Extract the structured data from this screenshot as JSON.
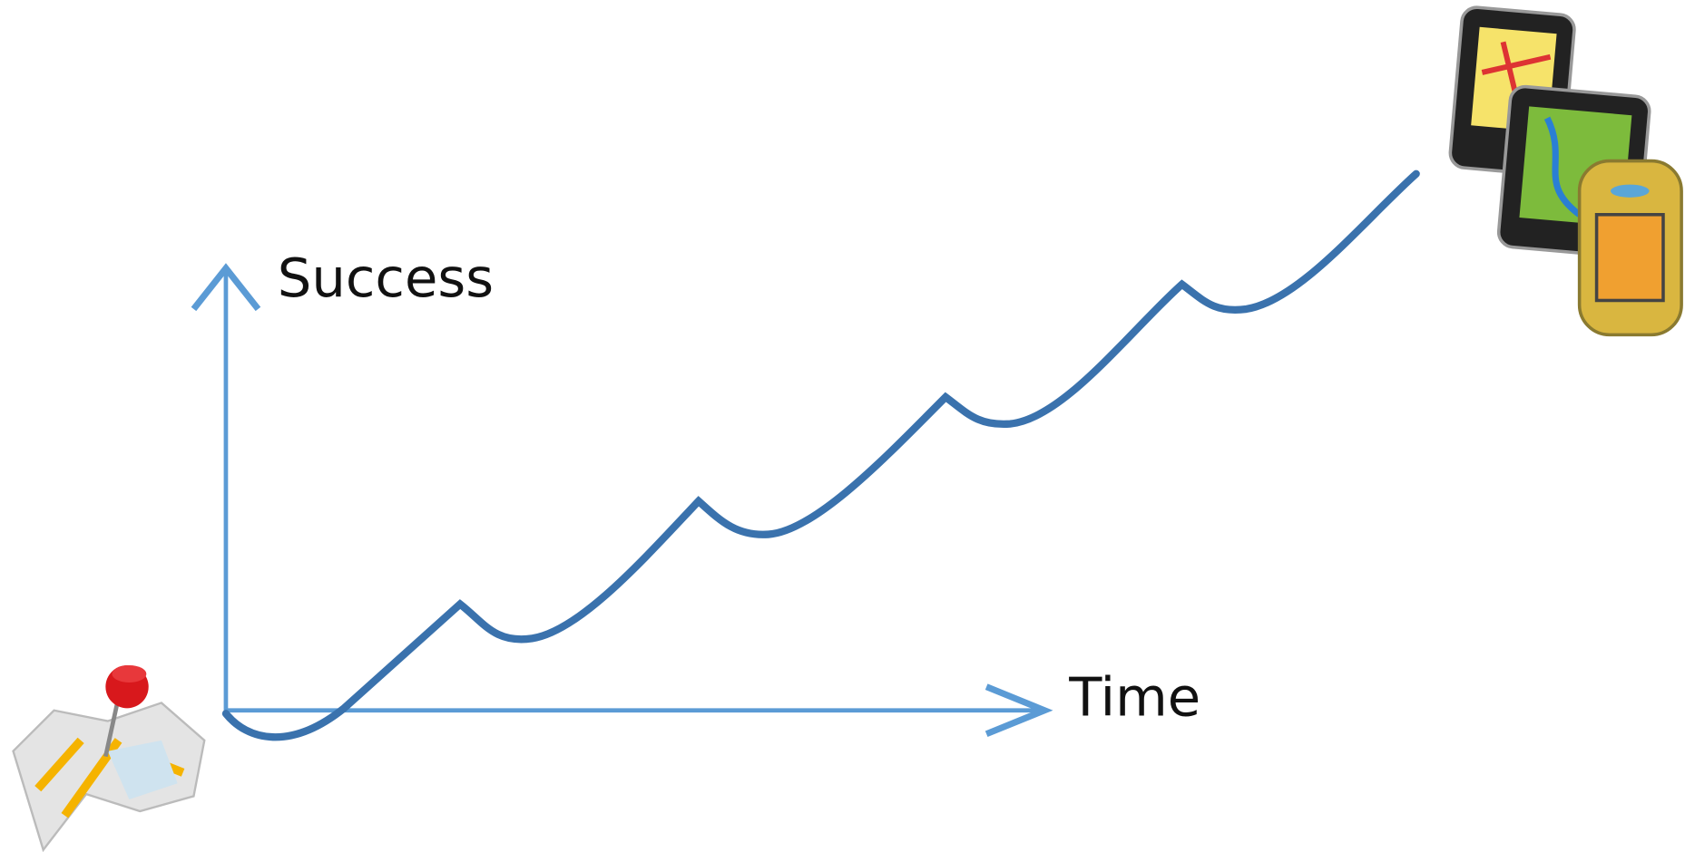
{
  "axes": {
    "y_label": "Success",
    "x_label": "Time"
  }
}
